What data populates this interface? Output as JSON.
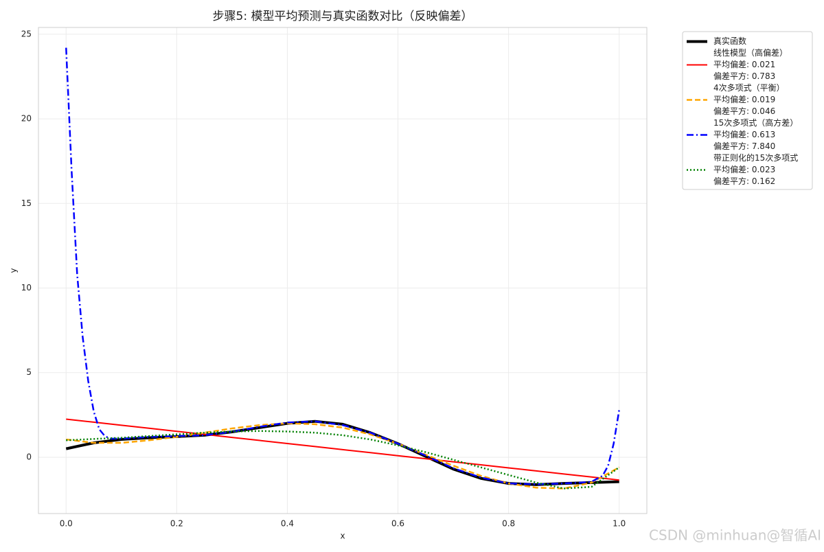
{
  "chart_data": {
    "type": "line",
    "title": "步骤5: 模型平均预测与真实函数对比（反映偏差）",
    "xlabel": "x",
    "ylabel": "y",
    "watermark": "CSDN @minhuan@智循AI",
    "x": [
      0,
      0.05,
      0.1,
      0.15,
      0.2,
      0.25,
      0.3,
      0.35,
      0.4,
      0.45,
      0.5,
      0.55,
      0.6,
      0.65,
      0.7,
      0.75,
      0.8,
      0.85,
      0.9,
      0.95,
      1.0
    ],
    "xlim": [
      -0.05,
      1.05
    ],
    "ylim": [
      -3.33,
      25.4
    ],
    "xticks": [
      {
        "value": 0,
        "label": "0.0"
      },
      {
        "value": 0.2,
        "label": "0.2"
      },
      {
        "value": 0.4,
        "label": "0.4"
      },
      {
        "value": 0.6,
        "label": "0.6"
      },
      {
        "value": 0.8,
        "label": "0.8"
      },
      {
        "value": 1.0,
        "label": "1.0"
      }
    ],
    "yticks": [
      0,
      5,
      10,
      15,
      20,
      25
    ],
    "grid": true,
    "legend": "outside upper right",
    "series": [
      {
        "name": "真实函数",
        "color": "#000000",
        "linestyle": "solid",
        "linewidth": 4,
        "values": [
          0.5,
          0.85,
          1.05,
          1.15,
          1.22,
          1.3,
          1.5,
          1.75,
          2.0,
          2.12,
          1.95,
          1.45,
          0.8,
          0.05,
          -0.7,
          -1.25,
          -1.55,
          -1.62,
          -1.55,
          -1.5,
          -1.45
        ]
      },
      {
        "name": "线性模型（高偏差）\n平均偏差: 0.021\n偏差平方: 0.783",
        "color": "#ff0000",
        "linestyle": "solid",
        "linewidth": 2,
        "values": [
          2.25,
          2.07,
          1.89,
          1.71,
          1.53,
          1.35,
          1.17,
          0.99,
          0.81,
          0.63,
          0.45,
          0.27,
          0.09,
          -0.09,
          -0.27,
          -0.45,
          -0.63,
          -0.81,
          -0.99,
          -1.17,
          -1.35
        ]
      },
      {
        "name": "4次多项式（平衡）\n平均偏差: 0.019\n偏差平方: 0.046",
        "color": "#ffa500",
        "linestyle": "dashed",
        "linewidth": 2.5,
        "values": [
          1.05,
          0.85,
          0.85,
          1.0,
          1.2,
          1.45,
          1.7,
          1.9,
          2.0,
          1.95,
          1.75,
          1.35,
          0.8,
          0.15,
          -0.5,
          -1.1,
          -1.55,
          -1.8,
          -1.85,
          -1.5,
          -0.6
        ]
      },
      {
        "name": "15次多项式（高方差）\n平均偏差: 0.613\n偏差平方: 7.840",
        "color": "#0000ff",
        "linestyle": "dashdot",
        "linewidth": 2.5,
        "x": [
          0,
          0.01,
          0.02,
          0.03,
          0.04,
          0.05,
          0.06,
          0.07,
          0.08,
          0.1,
          0.15,
          0.2,
          0.25,
          0.3,
          0.35,
          0.4,
          0.45,
          0.5,
          0.55,
          0.6,
          0.65,
          0.7,
          0.75,
          0.8,
          0.85,
          0.9,
          0.93,
          0.95,
          0.97,
          0.98,
          0.99,
          1.0
        ],
        "values": [
          24.2,
          16.9,
          10.8,
          7.1,
          4.5,
          2.7,
          1.65,
          1.25,
          1.1,
          1.1,
          1.2,
          1.25,
          1.3,
          1.5,
          1.8,
          2.05,
          2.12,
          1.9,
          1.45,
          0.8,
          0.1,
          -0.65,
          -1.2,
          -1.55,
          -1.6,
          -1.55,
          -1.5,
          -1.45,
          -1.1,
          -0.5,
          0.8,
          2.8
        ]
      },
      {
        "name": "带正则化的15次多项式\n平均偏差: 0.023\n偏差平方: 0.162",
        "color": "#008000",
        "linestyle": "dotted",
        "linewidth": 2.5,
        "values": [
          1.0,
          1.08,
          1.15,
          1.25,
          1.35,
          1.45,
          1.52,
          1.55,
          1.52,
          1.45,
          1.3,
          1.05,
          0.7,
          0.3,
          -0.15,
          -0.6,
          -1.05,
          -1.5,
          -1.85,
          -1.75,
          -0.6
        ]
      }
    ]
  }
}
